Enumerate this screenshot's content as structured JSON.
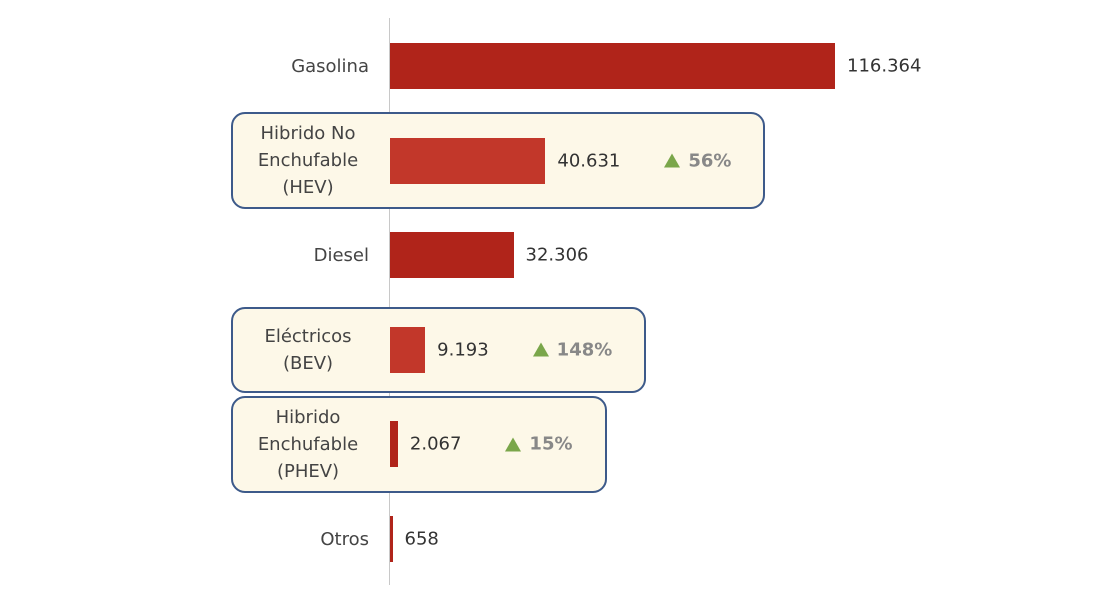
{
  "chart_data": {
    "type": "hbar",
    "categories": [
      "Gasolina",
      "Hibrido No Enchufable (HEV)",
      "Diesel",
      "Eléctricos (BEV)",
      "Hibrido Enchufable (PHEV)",
      "Otros"
    ],
    "values": [
      116364,
      40631,
      32306,
      9193,
      2067,
      658
    ],
    "value_labels": [
      "116.364",
      "40.631",
      "32.306",
      "9.193",
      "2.067",
      "658"
    ],
    "growth_labels": [
      null,
      "56%",
      null,
      "148%",
      "15%",
      null
    ],
    "highlight": [
      false,
      true,
      false,
      true,
      true,
      false
    ],
    "colors": [
      "#b0241a",
      "#c2372a",
      "#b0241a",
      "#c2372a",
      "#b0241a",
      "#b0241a"
    ],
    "growth_color": "#7aa64a"
  }
}
